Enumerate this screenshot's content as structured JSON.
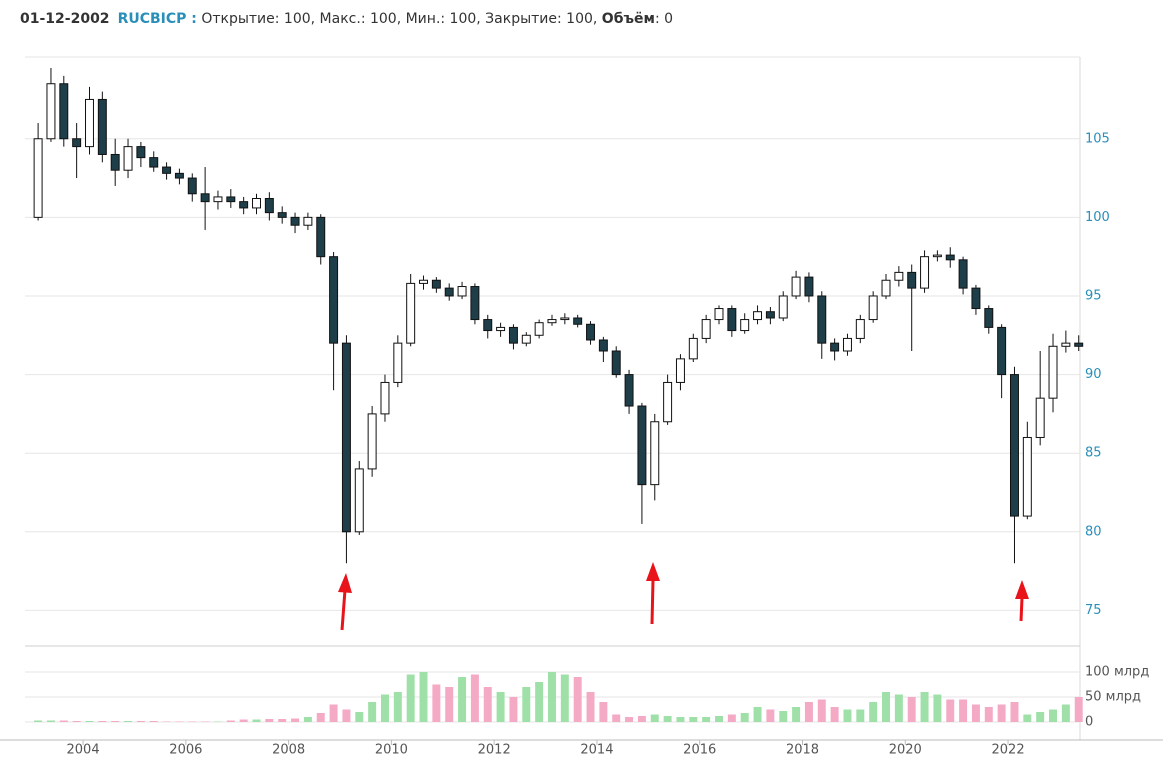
{
  "header": {
    "date": "01-12-2002",
    "ticker": "RUCBICP :",
    "fields": "Открытие: 100, Макс.: 100, Мин.: 100, Закрытие: 100,",
    "volume_label": "Объём",
    "volume_value": ": 0"
  },
  "chart_data": {
    "type": "candlestick",
    "x": [
      2003.125,
      2003.375,
      2003.625,
      2003.875,
      2004.125,
      2004.375,
      2004.625,
      2004.875,
      2005.125,
      2005.375,
      2005.625,
      2005.875,
      2006.125,
      2006.375,
      2006.625,
      2006.875,
      2007.125,
      2007.375,
      2007.625,
      2007.875,
      2008.125,
      2008.375,
      2008.625,
      2008.875,
      2009.125,
      2009.375,
      2009.625,
      2009.875,
      2010.125,
      2010.375,
      2010.625,
      2010.875,
      2011.125,
      2011.375,
      2011.625,
      2011.875,
      2012.125,
      2012.375,
      2012.625,
      2012.875,
      2013.125,
      2013.375,
      2013.625,
      2013.875,
      2014.125,
      2014.375,
      2014.625,
      2014.875,
      2015.125,
      2015.375,
      2015.625,
      2015.875,
      2016.125,
      2016.375,
      2016.625,
      2016.875,
      2017.125,
      2017.375,
      2017.625,
      2017.875,
      2018.125,
      2018.375,
      2018.625,
      2018.875,
      2019.125,
      2019.375,
      2019.625,
      2019.875,
      2020.125,
      2020.375,
      2020.625,
      2020.875,
      2021.125,
      2021.375,
      2021.625,
      2021.875,
      2022.125,
      2022.375,
      2022.625,
      2022.875,
      2023.125,
      2023.375
    ],
    "open": [
      100,
      105,
      108.5,
      105,
      104.5,
      107.5,
      104,
      103,
      104.5,
      103.8,
      103.2,
      102.8,
      102.5,
      101.5,
      101,
      101.3,
      101,
      100.6,
      101.2,
      100.3,
      100,
      99.5,
      100,
      97.5,
      92,
      80,
      84,
      87.5,
      89.5,
      92,
      95.8,
      96,
      95.5,
      95,
      95.6,
      93.5,
      92.8,
      93,
      92,
      92.5,
      93.3,
      93.5,
      93.6,
      93.2,
      92.2,
      91.5,
      90,
      88,
      83,
      87,
      89.5,
      91,
      92.3,
      93.5,
      94.2,
      92.8,
      93.5,
      94,
      93.6,
      95,
      96.2,
      95,
      92,
      91.5,
      92.3,
      93.5,
      95,
      96,
      96.5,
      95.5,
      97.5,
      97.6,
      97.3,
      95.5,
      94.2,
      93,
      90,
      81,
      86,
      88.5,
      91.8,
      92
    ],
    "high": [
      106,
      109.5,
      109,
      106,
      108.3,
      108,
      105,
      105,
      104.8,
      104.2,
      103.5,
      103.1,
      102.8,
      103.2,
      101.7,
      101.8,
      101.3,
      101.5,
      101.6,
      100.7,
      100.3,
      100.3,
      100.2,
      97.8,
      92.5,
      84.5,
      88,
      90,
      92.5,
      96.4,
      96.3,
      96.2,
      95.8,
      95.9,
      95.8,
      93.8,
      93.3,
      93.2,
      92.7,
      93.5,
      93.8,
      93.9,
      93.8,
      93.4,
      92.4,
      91.8,
      90.3,
      88.2,
      87.5,
      90,
      91.3,
      92.6,
      93.8,
      94.4,
      94.4,
      93.9,
      94.4,
      94.3,
      95.3,
      96.6,
      96.5,
      95.3,
      92.3,
      92.6,
      93.8,
      95.3,
      96.4,
      96.9,
      97,
      97.9,
      97.9,
      98.1,
      97.5,
      95.7,
      94.4,
      93.2,
      90.5,
      87,
      91.5,
      92.6,
      92.8,
      92.5
    ],
    "low": [
      99.8,
      104.8,
      104.5,
      102.5,
      104,
      103.5,
      102,
      102.5,
      103.2,
      102.9,
      102.4,
      102.1,
      101,
      99.2,
      100.5,
      100.6,
      100.2,
      100.2,
      99.8,
      99.6,
      99,
      99.2,
      97,
      89,
      78,
      79.8,
      83.5,
      87,
      89.2,
      91.8,
      95.4,
      95.2,
      94.7,
      94.8,
      93.2,
      92.3,
      92.4,
      91.6,
      91.8,
      92.3,
      93.1,
      93.2,
      93,
      91.9,
      90.8,
      89.8,
      87.5,
      80.5,
      82,
      86.8,
      89,
      90.8,
      92,
      93.2,
      92.4,
      92.6,
      93.2,
      93.2,
      93.4,
      94.8,
      94.6,
      91,
      90.9,
      91.2,
      92,
      93.3,
      94.8,
      95.6,
      91.5,
      95.2,
      97.2,
      96.8,
      95.1,
      93.8,
      92.6,
      88.5,
      78,
      80.8,
      85.5,
      87.6,
      91.4,
      91.5
    ],
    "close": [
      105,
      108.5,
      105,
      104.5,
      107.5,
      104,
      103,
      104.5,
      103.8,
      103.2,
      102.8,
      102.5,
      101.5,
      101,
      101.3,
      101,
      100.6,
      101.2,
      100.3,
      100,
      99.5,
      100,
      97.5,
      92,
      80,
      84,
      87.5,
      89.5,
      92,
      95.8,
      96,
      95.5,
      95,
      95.6,
      93.5,
      92.8,
      93,
      92,
      92.5,
      93.3,
      93.5,
      93.6,
      93.2,
      92.2,
      91.5,
      90,
      88,
      83,
      87,
      89.5,
      91,
      92.3,
      93.5,
      94.2,
      92.8,
      93.5,
      94,
      93.6,
      95,
      96.2,
      95,
      92,
      91.5,
      92.3,
      93.5,
      95,
      96,
      96.5,
      95.5,
      97.5,
      97.6,
      97.3,
      95.5,
      94.2,
      93,
      90,
      81,
      86,
      88.5,
      91.8,
      92,
      91.8
    ],
    "volume": [
      3,
      3,
      3,
      2,
      2,
      2,
      2,
      2,
      2,
      2,
      1,
      1,
      1,
      1,
      1,
      3,
      5,
      5,
      6,
      6,
      7,
      10,
      18,
      35,
      25,
      20,
      40,
      55,
      60,
      95,
      100,
      75,
      70,
      90,
      95,
      70,
      60,
      50,
      70,
      80,
      100,
      95,
      90,
      60,
      40,
      15,
      10,
      12,
      15,
      12,
      10,
      10,
      10,
      12,
      15,
      18,
      30,
      25,
      22,
      30,
      40,
      45,
      30,
      25,
      25,
      40,
      60,
      55,
      50,
      60,
      55,
      45,
      45,
      35,
      30,
      35,
      40,
      15,
      20,
      25,
      35,
      50
    ],
    "up_color": "#ffffff",
    "down_color": "#1e3f4a",
    "volume_up_color": "#9fe0a8",
    "volume_down_color": "#f4a9c4",
    "xlim": [
      2002.87,
      2023.4
    ],
    "xticks": [
      2004,
      2006,
      2008,
      2010,
      2012,
      2014,
      2016,
      2018,
      2020,
      2022
    ],
    "ylim": [
      72.8,
      110.2
    ],
    "yticks": [
      75,
      80,
      85,
      90,
      95,
      100,
      105
    ],
    "volume_lim": [
      -16,
      148
    ],
    "volume_ticks": [
      0,
      {
        "value": 50,
        "label": "50 млрд"
      },
      {
        "value": 100,
        "label": "100 млрд"
      }
    ],
    "grid": true
  }
}
